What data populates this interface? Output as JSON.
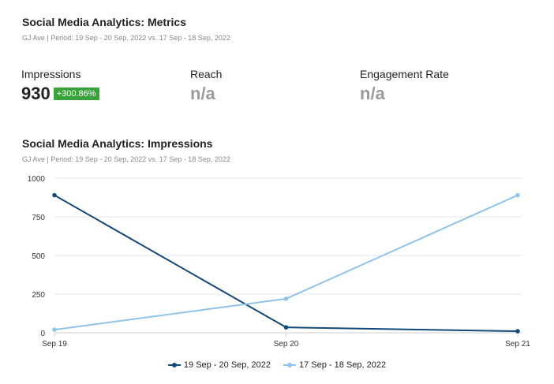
{
  "metrics_header": {
    "title": "Social Media Analytics: Metrics",
    "subtitle": "GJ Ave | Period: 19 Sep - 20 Sep, 2022 vs. 17 Sep - 18 Sep, 2022"
  },
  "metrics": {
    "impressions": {
      "label": "Impressions",
      "value": "930",
      "change": "+300.86%"
    },
    "reach": {
      "label": "Reach",
      "value": "n/a"
    },
    "engagement": {
      "label": "Engagement Rate",
      "value": "n/a"
    }
  },
  "chart_header": {
    "title": "Social Media Analytics: Impressions",
    "subtitle": "GJ Ave | Period: 19 Sep - 20 Sep, 2022 vs. 17 Sep - 18 Sep, 2022"
  },
  "colors": {
    "badge": "#3aa23a",
    "current": "#14497a",
    "previous": "#8fc3e8",
    "grid": "#e6e6e6"
  },
  "chart_data": {
    "type": "line",
    "categories": [
      "Sep 19",
      "Sep 20",
      "Sep 21"
    ],
    "ylim": [
      0,
      1000
    ],
    "yticks": [
      0,
      250,
      500,
      750,
      1000
    ],
    "grid": true,
    "legend_position": "bottom-center",
    "series": [
      {
        "name": "19 Sep - 20 Sep, 2022",
        "values": [
          890,
          35,
          10
        ]
      },
      {
        "name": "17 Sep - 18 Sep, 2022",
        "values": [
          20,
          220,
          890
        ]
      }
    ]
  }
}
